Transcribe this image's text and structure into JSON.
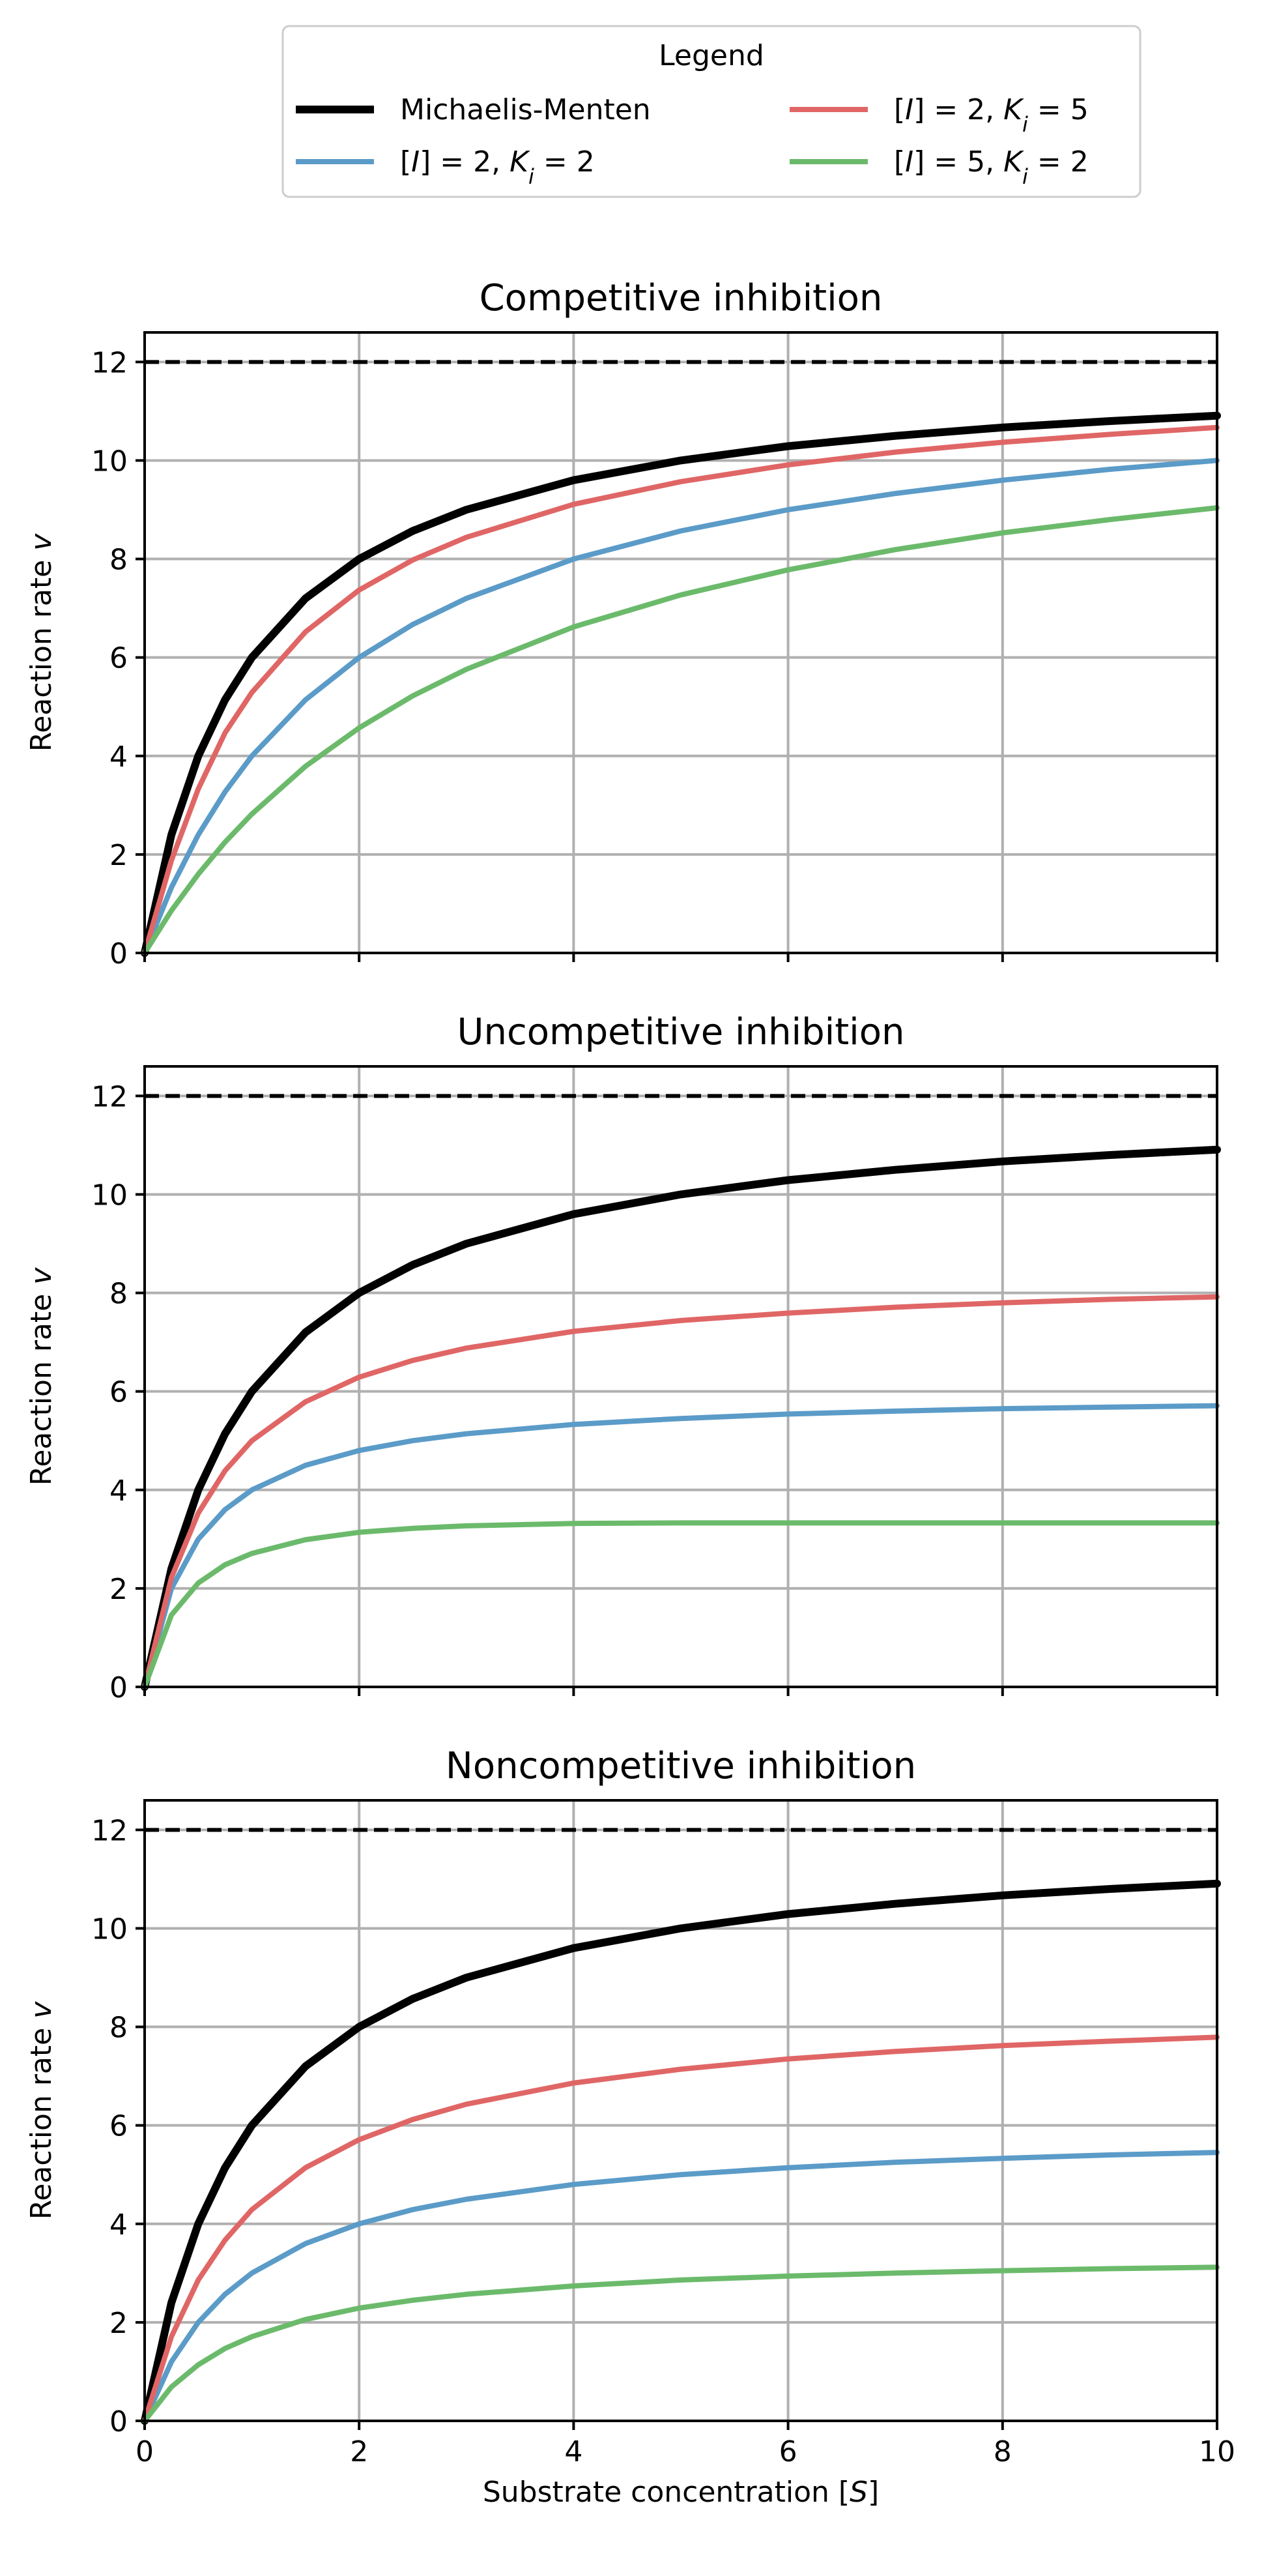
{
  "legend": {
    "title": "Legend",
    "placement": "top-center",
    "entries": [
      {
        "label_parts": [
          {
            "t": "Michaelis-Menten"
          }
        ],
        "color": "#000000",
        "width": 3
      },
      {
        "label_parts": [
          {
            "t": "[",
            "i": false
          },
          {
            "t": "I",
            "i": true
          },
          {
            "t": "] = 2, ",
            "i": false
          },
          {
            "t": "K",
            "i": true
          },
          {
            "t": "i",
            "i": true,
            "sub": true
          },
          {
            "t": " = 2",
            "i": false
          }
        ],
        "color": "#5b9bc8",
        "width": 2
      },
      {
        "label_parts": [
          {
            "t": "[",
            "i": false
          },
          {
            "t": "I",
            "i": true
          },
          {
            "t": "] = 2, ",
            "i": false
          },
          {
            "t": "K",
            "i": true
          },
          {
            "t": "i",
            "i": true,
            "sub": true
          },
          {
            "t": " = 5",
            "i": false
          }
        ],
        "color": "#e06666",
        "width": 2
      },
      {
        "label_parts": [
          {
            "t": "[",
            "i": false
          },
          {
            "t": "I",
            "i": true
          },
          {
            "t": "] = 5, ",
            "i": false
          },
          {
            "t": "K",
            "i": true
          },
          {
            "t": "i",
            "i": true,
            "sub": true
          },
          {
            "t": " = 2",
            "i": false
          }
        ],
        "color": "#6bba6b",
        "width": 2
      }
    ]
  },
  "chart_data": [
    {
      "type": "line",
      "title": "Competitive inhibition",
      "xlabel": "",
      "ylabel_parts": [
        {
          "t": "Reaction rate ",
          "i": false
        },
        {
          "t": "v",
          "i": true
        }
      ],
      "xlim": [
        0,
        10
      ],
      "ylim": [
        0,
        12.6
      ],
      "xticks": [
        0,
        2,
        4,
        6,
        8,
        10
      ],
      "yticks": [
        0,
        2,
        4,
        6,
        8,
        10,
        12
      ],
      "show_x_tick_labels": false,
      "grid": true,
      "vmax_line": 12,
      "x": [
        0,
        0.25,
        0.5,
        0.75,
        1,
        1.5,
        2,
        2.5,
        3,
        4,
        5,
        6,
        7,
        8,
        9,
        10
      ],
      "series": [
        {
          "name": "Michaelis-Menten",
          "color": "#000000",
          "width": 3,
          "values": [
            0,
            2.4,
            4.0,
            5.14,
            6.0,
            7.2,
            8.0,
            8.57,
            9.0,
            9.6,
            10.0,
            10.29,
            10.5,
            10.67,
            10.8,
            10.91
          ]
        },
        {
          "name": "[I] = 2, Ki = 2",
          "color": "#5b9bc8",
          "width": 2,
          "values": [
            0,
            1.33,
            2.4,
            3.27,
            4.0,
            5.14,
            6.0,
            6.67,
            7.2,
            8.0,
            8.57,
            9.0,
            9.33,
            9.6,
            9.82,
            10.0
          ]
        },
        {
          "name": "[I] = 2, Ki = 5",
          "color": "#e06666",
          "width": 2,
          "values": [
            0,
            1.88,
            3.33,
            4.47,
            5.29,
            6.52,
            7.37,
            7.98,
            8.44,
            9.11,
            9.57,
            9.91,
            10.17,
            10.37,
            10.53,
            10.67
          ]
        },
        {
          "name": "[I] = 5, Ki = 2",
          "color": "#6bba6b",
          "width": 2,
          "values": [
            0,
            0.86,
            1.6,
            2.25,
            2.82,
            3.79,
            4.57,
            5.22,
            5.76,
            6.62,
            7.27,
            7.78,
            8.19,
            8.53,
            8.8,
            9.04
          ]
        }
      ]
    },
    {
      "type": "line",
      "title": "Uncompetitive inhibition",
      "xlabel": "",
      "ylabel_parts": [
        {
          "t": "Reaction rate ",
          "i": false
        },
        {
          "t": "v",
          "i": true
        }
      ],
      "xlim": [
        0,
        10
      ],
      "ylim": [
        0,
        12.6
      ],
      "xticks": [
        0,
        2,
        4,
        6,
        8,
        10
      ],
      "yticks": [
        0,
        2,
        4,
        6,
        8,
        10,
        12
      ],
      "show_x_tick_labels": false,
      "grid": true,
      "vmax_line": 12,
      "x": [
        0,
        0.25,
        0.5,
        0.75,
        1,
        1.5,
        2,
        2.5,
        3,
        4,
        5,
        6,
        7,
        8,
        9,
        10
      ],
      "series": [
        {
          "name": "Michaelis-Menten",
          "color": "#000000",
          "width": 3,
          "values": [
            0,
            2.4,
            4.0,
            5.14,
            6.0,
            7.2,
            8.0,
            8.57,
            9.0,
            9.6,
            10.0,
            10.29,
            10.5,
            10.67,
            10.8,
            10.91
          ]
        },
        {
          "name": "[I] = 2, Ki = 2",
          "color": "#5b9bc8",
          "width": 2,
          "values": [
            0,
            2.0,
            3.0,
            3.6,
            4.0,
            4.5,
            4.8,
            5.0,
            5.14,
            5.33,
            5.45,
            5.54,
            5.6,
            5.65,
            5.68,
            5.71
          ]
        },
        {
          "name": "[I] = 2, Ki = 5",
          "color": "#e06666",
          "width": 2,
          "values": [
            0,
            2.22,
            3.53,
            4.39,
            5.0,
            5.79,
            6.29,
            6.63,
            6.88,
            7.22,
            7.44,
            7.59,
            7.71,
            7.8,
            7.87,
            7.92
          ]
        },
        {
          "name": "[I] = 5, Ki = 2",
          "color": "#6bba6b",
          "width": 2,
          "values": [
            0,
            1.46,
            2.11,
            2.48,
            2.71,
            2.99,
            3.14,
            3.22,
            3.27,
            3.32,
            3.33,
            3.33,
            3.33,
            3.33,
            3.33,
            3.33
          ]
        }
      ]
    },
    {
      "type": "line",
      "title": "Noncompetitive inhibition",
      "xlabel_parts": [
        {
          "t": "Substrate concentration [",
          "i": false
        },
        {
          "t": "S",
          "i": true
        },
        {
          "t": "]",
          "i": false
        }
      ],
      "ylabel_parts": [
        {
          "t": "Reaction rate ",
          "i": false
        },
        {
          "t": "v",
          "i": true
        }
      ],
      "xlim": [
        0,
        10
      ],
      "ylim": [
        0,
        12.6
      ],
      "xticks": [
        0,
        2,
        4,
        6,
        8,
        10
      ],
      "yticks": [
        0,
        2,
        4,
        6,
        8,
        10,
        12
      ],
      "show_x_tick_labels": true,
      "grid": true,
      "vmax_line": 12,
      "x": [
        0,
        0.25,
        0.5,
        0.75,
        1,
        1.5,
        2,
        2.5,
        3,
        4,
        5,
        6,
        7,
        8,
        9,
        10
      ],
      "series": [
        {
          "name": "Michaelis-Menten",
          "color": "#000000",
          "width": 3,
          "values": [
            0,
            2.4,
            4.0,
            5.14,
            6.0,
            7.2,
            8.0,
            8.57,
            9.0,
            9.6,
            10.0,
            10.29,
            10.5,
            10.67,
            10.8,
            10.91
          ]
        },
        {
          "name": "[I] = 2, Ki = 2",
          "color": "#5b9bc8",
          "width": 2,
          "values": [
            0,
            1.2,
            2.0,
            2.57,
            3.0,
            3.6,
            4.0,
            4.29,
            4.5,
            4.8,
            5.0,
            5.14,
            5.25,
            5.33,
            5.4,
            5.45
          ]
        },
        {
          "name": "[I] = 2, Ki = 5",
          "color": "#e06666",
          "width": 2,
          "values": [
            0,
            1.71,
            2.86,
            3.67,
            4.29,
            5.14,
            5.71,
            6.12,
            6.43,
            6.86,
            7.14,
            7.35,
            7.5,
            7.62,
            7.71,
            7.79
          ]
        },
        {
          "name": "[I] = 5, Ki = 2",
          "color": "#6bba6b",
          "width": 2,
          "values": [
            0,
            0.69,
            1.14,
            1.47,
            1.71,
            2.06,
            2.29,
            2.45,
            2.57,
            2.74,
            2.86,
            2.94,
            3.0,
            3.05,
            3.09,
            3.12
          ]
        }
      ]
    }
  ]
}
